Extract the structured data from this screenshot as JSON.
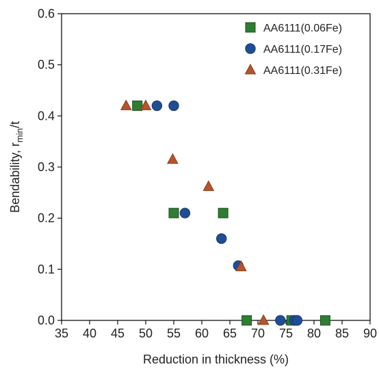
{
  "chart_data": {
    "type": "scatter",
    "title": "",
    "xlabel": "Reduction in thickness (%)",
    "ylabel_prefix": "Bendability,  r",
    "ylabel_sub": "min",
    "ylabel_suffix": "/t",
    "xlim": [
      35,
      90
    ],
    "ylim": [
      0.0,
      0.6
    ],
    "xticks": [
      35,
      40,
      45,
      50,
      55,
      60,
      65,
      70,
      75,
      80,
      85,
      90
    ],
    "yticks": [
      0.0,
      0.1,
      0.2,
      0.3,
      0.4,
      0.5,
      0.6
    ],
    "grid": false,
    "legend_position": "top-right",
    "series": [
      {
        "name": "AA6111(0.06Fe)",
        "marker": "square",
        "color": "#2e7d32",
        "points": [
          [
            48.5,
            0.42
          ],
          [
            55.0,
            0.21
          ],
          [
            63.8,
            0.21
          ],
          [
            68.0,
            0.0
          ],
          [
            76.0,
            0.0
          ],
          [
            82.0,
            0.0
          ]
        ]
      },
      {
        "name": "AA6111(0.17Fe)",
        "marker": "circle",
        "color": "#1f4e96",
        "points": [
          [
            52.0,
            0.42
          ],
          [
            55.0,
            0.42
          ],
          [
            57.0,
            0.21
          ],
          [
            63.5,
            0.16
          ],
          [
            66.5,
            0.107
          ],
          [
            74.0,
            0.0
          ],
          [
            76.5,
            0.0
          ],
          [
            77.0,
            0.0
          ]
        ]
      },
      {
        "name": "AA6111(0.31Fe)",
        "marker": "triangle",
        "color": "#b5552a",
        "points": [
          [
            46.5,
            0.42
          ],
          [
            50.0,
            0.42
          ],
          [
            54.8,
            0.315
          ],
          [
            61.2,
            0.262
          ],
          [
            67.0,
            0.105
          ],
          [
            71.0,
            0.0
          ]
        ]
      }
    ]
  }
}
